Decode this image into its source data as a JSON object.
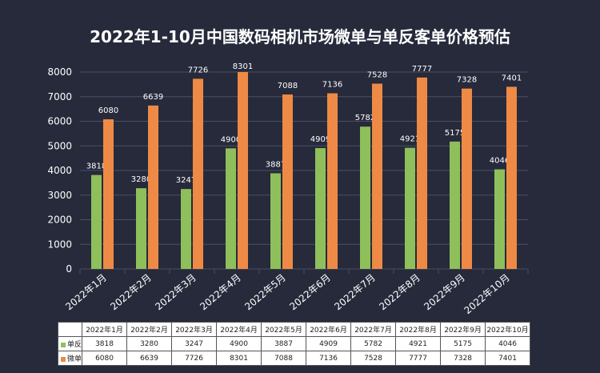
{
  "chart_data": {
    "type": "bar",
    "title": "2022年1-10月中国数码相机市场微单与单反客单价格预估",
    "categories": [
      "2022年1月",
      "2022年2月",
      "2022年3月",
      "2022年4月",
      "2022年5月",
      "2022年6月",
      "2022年7月",
      "2022年8月",
      "2022年9月",
      "2022年10月"
    ],
    "series": [
      {
        "name": "单反",
        "color": "#8fbf5a",
        "values": [
          3818,
          3280,
          3247,
          4900,
          3887,
          4909,
          5782,
          4921,
          5175,
          4046
        ]
      },
      {
        "name": "微单",
        "color": "#ee8a45",
        "values": [
          6080,
          6639,
          7726,
          8301,
          7088,
          7136,
          7528,
          7777,
          7328,
          7401
        ]
      }
    ],
    "ylim": [
      0,
      8000
    ],
    "yticks": [
      0,
      1000,
      2000,
      3000,
      4000,
      5000,
      6000,
      7000,
      8000
    ],
    "grid": true,
    "legend": "data-table"
  }
}
